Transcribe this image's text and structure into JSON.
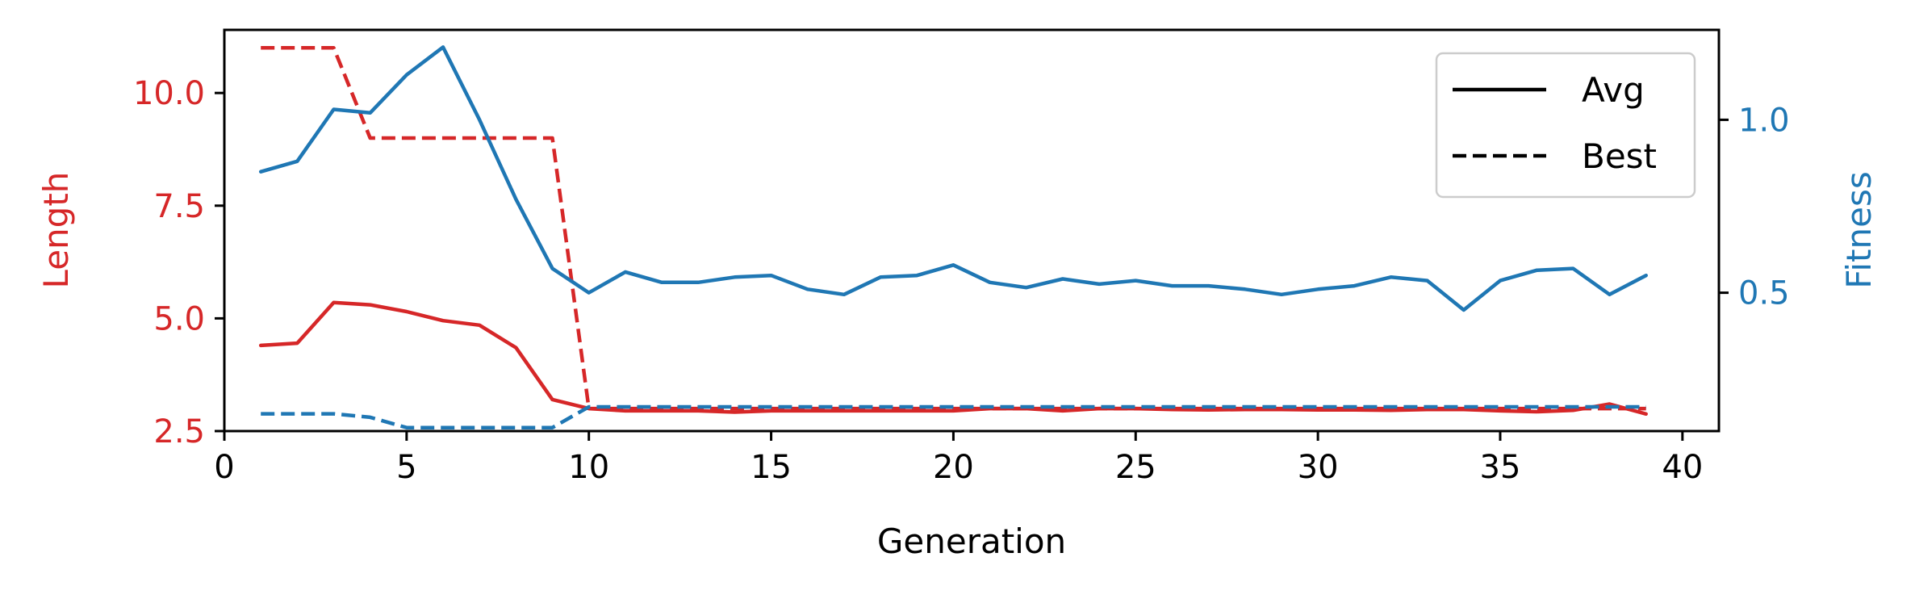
{
  "chart_data": {
    "type": "line",
    "xlabel": "Generation",
    "xlim": [
      0,
      41
    ],
    "xticks": [
      0,
      5,
      10,
      15,
      20,
      25,
      30,
      35,
      40
    ],
    "left_axis": {
      "label": "Length",
      "color": "#d62728",
      "lim": [
        2.5,
        11.4
      ],
      "ticks": [
        2.5,
        5.0,
        7.5,
        10.0
      ]
    },
    "right_axis": {
      "label": "Fitness",
      "color": "#1f77b4",
      "lim": [
        0.1,
        1.26
      ],
      "ticks": [
        0.5,
        1.0
      ]
    },
    "x": [
      1,
      2,
      3,
      4,
      5,
      6,
      7,
      8,
      9,
      10,
      11,
      12,
      13,
      14,
      15,
      16,
      17,
      18,
      19,
      20,
      21,
      22,
      23,
      24,
      25,
      26,
      27,
      28,
      29,
      30,
      31,
      32,
      33,
      34,
      35,
      36,
      37,
      38,
      39
    ],
    "series": [
      {
        "name": "Avg",
        "axis": "left",
        "style": "solid",
        "color": "#d62728",
        "values": [
          4.4,
          4.45,
          5.35,
          5.3,
          5.15,
          4.95,
          4.85,
          4.35,
          3.2,
          3.0,
          2.95,
          2.95,
          2.95,
          2.92,
          2.95,
          2.95,
          2.95,
          2.95,
          2.95,
          2.95,
          3.0,
          3.0,
          2.95,
          3.0,
          3.0,
          2.98,
          2.97,
          2.98,
          2.98,
          2.97,
          2.97,
          2.96,
          2.98,
          2.98,
          2.95,
          2.93,
          2.96,
          3.1,
          2.88
        ]
      },
      {
        "name": "Best",
        "axis": "left",
        "style": "dashed",
        "color": "#d62728",
        "values": [
          11.0,
          11.0,
          11.0,
          9.0,
          9.0,
          9.0,
          9.0,
          9.0,
          9.0,
          3.0,
          3.0,
          3.0,
          3.0,
          3.0,
          3.0,
          3.0,
          3.0,
          3.0,
          3.0,
          3.0,
          3.0,
          3.0,
          3.0,
          3.0,
          3.0,
          3.0,
          3.0,
          3.0,
          3.0,
          3.0,
          3.0,
          3.0,
          3.0,
          3.0,
          3.0,
          3.0,
          3.0,
          3.0,
          3.0
        ]
      },
      {
        "name": "Avg",
        "axis": "right",
        "style": "solid",
        "color": "#1f77b4",
        "values": [
          0.85,
          0.88,
          1.03,
          1.02,
          1.13,
          1.21,
          1.0,
          0.77,
          0.57,
          0.5,
          0.56,
          0.53,
          0.53,
          0.545,
          0.55,
          0.51,
          0.495,
          0.545,
          0.55,
          0.58,
          0.53,
          0.515,
          0.54,
          0.525,
          0.535,
          0.52,
          0.52,
          0.51,
          0.495,
          0.51,
          0.52,
          0.545,
          0.535,
          0.45,
          0.535,
          0.565,
          0.57,
          0.495,
          0.55
        ]
      },
      {
        "name": "Best",
        "axis": "right",
        "style": "dashed",
        "color": "#1f77b4",
        "values": [
          0.15,
          0.15,
          0.15,
          0.14,
          0.11,
          0.11,
          0.11,
          0.11,
          0.11,
          0.17,
          0.17,
          0.17,
          0.17,
          0.17,
          0.17,
          0.17,
          0.17,
          0.17,
          0.17,
          0.17,
          0.17,
          0.17,
          0.17,
          0.17,
          0.17,
          0.17,
          0.17,
          0.17,
          0.17,
          0.17,
          0.17,
          0.17,
          0.17,
          0.17,
          0.17,
          0.17,
          0.17,
          0.17,
          0.17
        ]
      }
    ],
    "legend": {
      "placement": "top-right",
      "entries": [
        {
          "label": "Avg",
          "style": "solid",
          "color": "#000000"
        },
        {
          "label": "Best",
          "style": "dashed",
          "color": "#000000"
        }
      ]
    },
    "grid": false
  }
}
